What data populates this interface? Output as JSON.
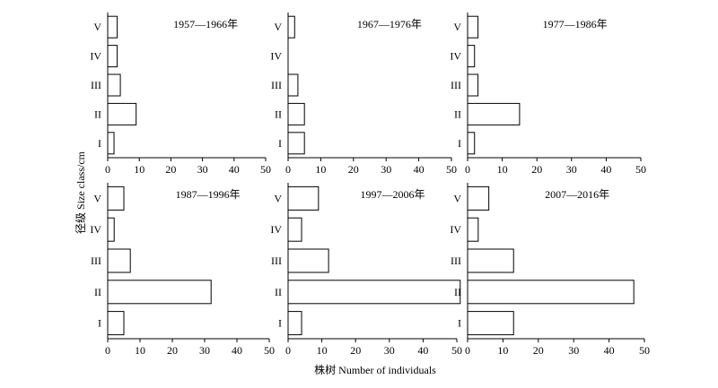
{
  "figure": {
    "ylabel": "径级 Size class/cm",
    "xlabel": "株树 Number of individuals"
  },
  "chart_data": [
    {
      "type": "bar",
      "title": "1957—1966年",
      "categories": [
        "I",
        "II",
        "III",
        "IV",
        "V"
      ],
      "values": [
        2,
        9,
        4,
        3,
        3
      ],
      "xlim": [
        0,
        50
      ],
      "xticks": [
        0,
        10,
        20,
        30,
        40,
        50
      ],
      "ylabel": "径级 Size class/cm",
      "xlabel": "株树 Number of individuals"
    },
    {
      "type": "bar",
      "title": "1967—1976年",
      "categories": [
        "I",
        "II",
        "III",
        "IV",
        "V"
      ],
      "values": [
        5,
        5,
        3,
        0,
        2
      ],
      "xlim": [
        0,
        50
      ],
      "xticks": [
        0,
        10,
        20,
        30,
        40,
        50
      ],
      "ylabel": "径级 Size class/cm",
      "xlabel": "株树 Number of individuals"
    },
    {
      "type": "bar",
      "title": "1977—1986年",
      "categories": [
        "I",
        "II",
        "III",
        "IV",
        "V"
      ],
      "values": [
        2,
        15,
        3,
        2,
        3
      ],
      "xlim": [
        0,
        50
      ],
      "xticks": [
        0,
        10,
        20,
        30,
        40,
        50
      ],
      "ylabel": "径级 Size class/cm",
      "xlabel": "株树 Number of individuals"
    },
    {
      "type": "bar",
      "title": "1987—1996年",
      "categories": [
        "I",
        "II",
        "III",
        "IV",
        "V"
      ],
      "values": [
        5,
        32,
        7,
        2,
        5
      ],
      "xlim": [
        0,
        50
      ],
      "xticks": [
        0,
        10,
        20,
        30,
        40,
        50
      ],
      "ylabel": "径级 Size class/cm",
      "xlabel": "株树 Number of individuals"
    },
    {
      "type": "bar",
      "title": "1997—2006年",
      "categories": [
        "I",
        "II",
        "III",
        "IV",
        "V"
      ],
      "values": [
        4,
        51,
        12,
        4,
        9
      ],
      "xlim": [
        0,
        50
      ],
      "xticks": [
        0,
        10,
        20,
        30,
        40,
        50
      ],
      "ylabel": "径级 Size class/cm",
      "xlabel": "株树 Number of individuals"
    },
    {
      "type": "bar",
      "title": "2007—2016年",
      "categories": [
        "I",
        "II",
        "III",
        "IV",
        "V"
      ],
      "values": [
        13,
        47,
        13,
        3,
        6
      ],
      "xlim": [
        0,
        50
      ],
      "xticks": [
        0,
        10,
        20,
        30,
        40,
        50
      ],
      "ylabel": "径级 Size class/cm",
      "xlabel": "株树 Number of individuals"
    }
  ]
}
